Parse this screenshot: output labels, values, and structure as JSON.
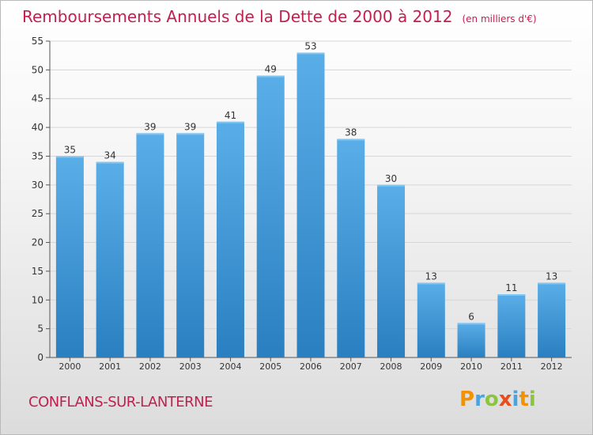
{
  "header": {
    "title": "Remboursements Annuels de la Dette de 2000 à 2012",
    "subtitle": "(en milliers d'€)"
  },
  "footer": {
    "commune": "CONFLANS-SUR-LANTERNE",
    "logo_letters": [
      {
        "char": "P",
        "color": "#f39200"
      },
      {
        "char": "r",
        "color": "#4aa3df"
      },
      {
        "char": "o",
        "color": "#8bc53f"
      },
      {
        "char": "x",
        "color": "#e84e1b"
      },
      {
        "char": "i",
        "color": "#4aa3df"
      },
      {
        "char": "t",
        "color": "#f39200"
      },
      {
        "char": "i",
        "color": "#8bc53f"
      }
    ]
  },
  "chart_data": {
    "type": "bar",
    "categories": [
      "2000",
      "2001",
      "2002",
      "2003",
      "2004",
      "2005",
      "2006",
      "2007",
      "2008",
      "2009",
      "2010",
      "2011",
      "2012"
    ],
    "values": [
      35,
      34,
      39,
      39,
      41,
      49,
      53,
      38,
      30,
      13,
      6,
      11,
      13
    ],
    "ylim": [
      0,
      55
    ],
    "yticks": [
      0,
      5,
      10,
      15,
      20,
      25,
      30,
      35,
      40,
      45,
      50,
      55
    ],
    "grid": true,
    "bar_color_top": "#5aaee8",
    "bar_color_bottom": "#2a7fc0",
    "label_color": "#333333"
  }
}
